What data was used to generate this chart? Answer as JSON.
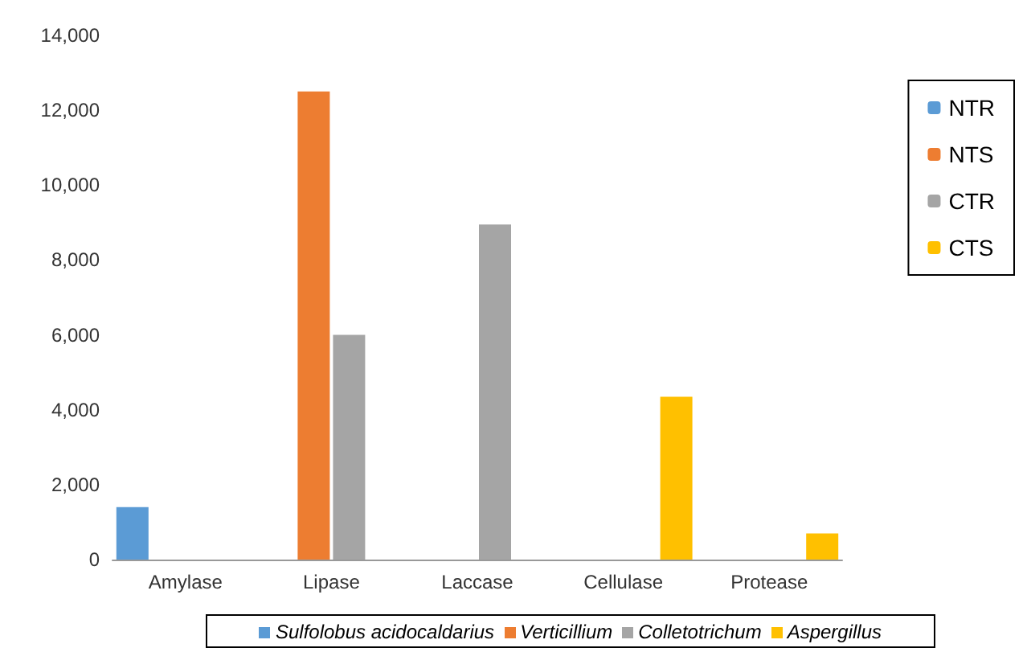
{
  "chart_data": {
    "type": "bar",
    "categories": [
      "Amylase",
      "Lipase",
      "Laccase",
      "Cellulase",
      "Protease"
    ],
    "series": [
      {
        "name": "NTR",
        "color": "#5b9bd5",
        "values": [
          1400,
          0,
          0,
          0,
          0
        ]
      },
      {
        "name": "NTS",
        "color": "#ed7d31",
        "values": [
          0,
          12500,
          0,
          0,
          0
        ]
      },
      {
        "name": "CTR",
        "color": "#a5a5a5",
        "values": [
          0,
          6000,
          8950,
          0,
          0
        ]
      },
      {
        "name": "CTS",
        "color": "#ffc000",
        "values": [
          0,
          0,
          0,
          4350,
          700
        ]
      }
    ],
    "ylim": [
      0,
      14000
    ],
    "yticks": [
      0,
      {
        "value": 2000,
        "label": "2,000"
      },
      {
        "value": 4000,
        "label": "4,000"
      },
      {
        "value": 6000,
        "label": "6,000"
      },
      {
        "value": 8000,
        "label": "8,000"
      },
      {
        "value": 10000,
        "label": "10,000"
      },
      {
        "value": 12000,
        "label": "12,000"
      },
      {
        "value": 14000,
        "label": "14,000"
      }
    ],
    "grid": false,
    "legend": "right",
    "annotations": [
      "Sulfolobus acidocaldarius",
      "Verticillium",
      "Colletotrichum",
      "Aspergillus"
    ]
  }
}
